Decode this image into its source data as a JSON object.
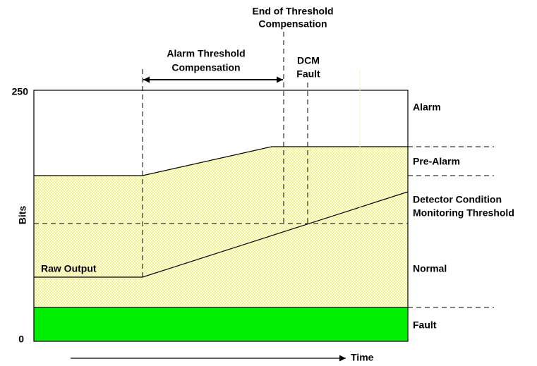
{
  "axis": {
    "y_label": "Bits",
    "y_max_label": "250",
    "y_min_label": "0",
    "x_label": "Time"
  },
  "annotations": {
    "compensation": [
      "Alarm Threshold",
      "Compensation"
    ],
    "end_compensation": [
      "End of Threshold",
      "Compensation"
    ],
    "dcm_fault": [
      "DCM",
      "Fault"
    ],
    "raw_output": "Raw Output"
  },
  "zones": {
    "alarm": "Alarm",
    "pre_alarm": "Pre-Alarm",
    "dcm_threshold": [
      "Detector Condition",
      "Monitoring Threshold"
    ],
    "normal": "Normal",
    "fault": "Fault"
  }
}
